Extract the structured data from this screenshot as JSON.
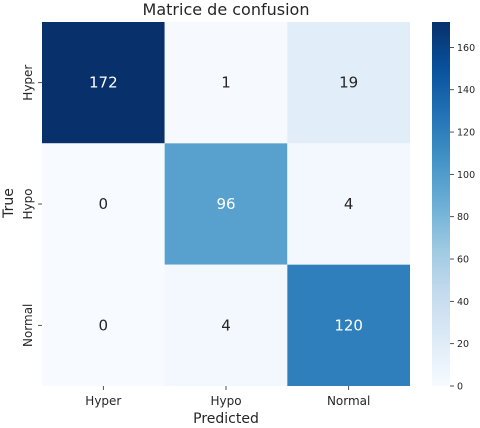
{
  "chart_data": {
    "type": "heatmap",
    "title": "Matrice de confusion",
    "xlabel": "Predicted",
    "ylabel": "True",
    "x_categories": [
      "Hyper",
      "Hypo",
      "Normal"
    ],
    "y_categories": [
      "Hyper",
      "Hypo",
      "Normal"
    ],
    "values": [
      [
        172,
        1,
        19
      ],
      [
        0,
        96,
        4
      ],
      [
        0,
        4,
        120
      ]
    ],
    "colorbar": {
      "colormap": "Blues",
      "range": [
        0,
        172
      ],
      "ticks": [
        0,
        20,
        40,
        60,
        80,
        100,
        120,
        140,
        160
      ]
    }
  }
}
